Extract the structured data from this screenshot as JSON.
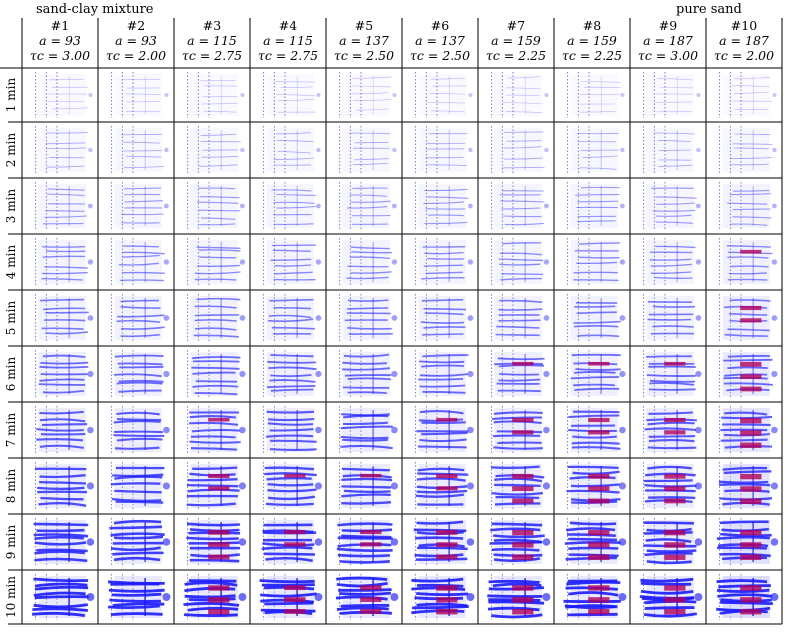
{
  "titles": {
    "left": "sand-clay mixture",
    "right": "pure sand"
  },
  "columns": [
    {
      "id": "#1",
      "a": "a = 93",
      "tau": "τc = 3.00"
    },
    {
      "id": "#2",
      "a": "a = 93",
      "tau": "τc = 2.00"
    },
    {
      "id": "#3",
      "a": "a = 115",
      "tau": "τc = 2.75"
    },
    {
      "id": "#4",
      "a": "a = 115",
      "tau": "τc = 2.75"
    },
    {
      "id": "#5",
      "a": "a = 137",
      "tau": "τc = 2.50"
    },
    {
      "id": "#6",
      "a": "a = 137",
      "tau": "τc = 2.50"
    },
    {
      "id": "#7",
      "a": "a = 159",
      "tau": "τc = 2.25"
    },
    {
      "id": "#8",
      "a": "a = 159",
      "tau": "τc = 2.25"
    },
    {
      "id": "#9",
      "a": "a = 187",
      "tau": "τc = 3.00"
    },
    {
      "id": "#10",
      "a": "a = 187",
      "tau": "τc = 2.00"
    }
  ],
  "rows": [
    "1 min",
    "2 min",
    "3 min",
    "4 min",
    "5 min",
    "6 min",
    "7 min",
    "8 min",
    "9 min",
    "10 min"
  ],
  "colors": {
    "channel": "#1a1aff",
    "channel_light": "#b8b8ff",
    "deposit": "#b0005a",
    "grid": "#000000"
  }
}
